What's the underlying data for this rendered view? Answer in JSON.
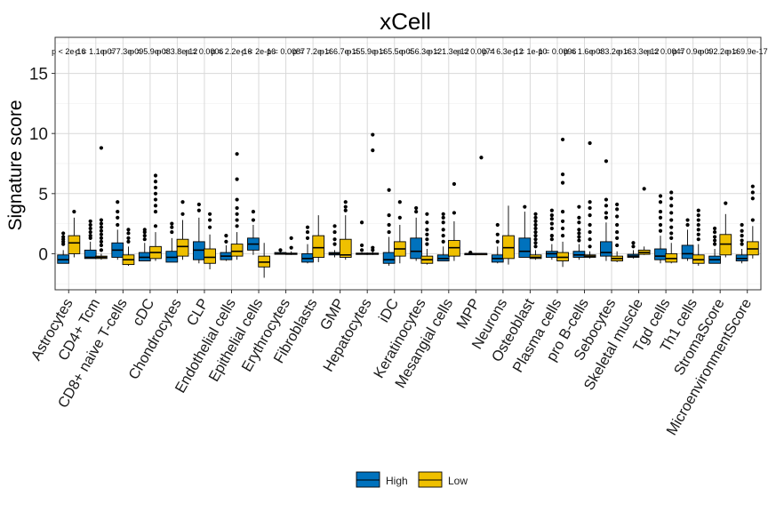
{
  "chart_data": {
    "type": "box",
    "title": "xCell",
    "ylabel": "Signature score",
    "xlabel": "",
    "ylim": [
      -3,
      18
    ],
    "yticks": [
      0,
      5,
      10,
      15
    ],
    "grid": true,
    "legend_position": "bottom",
    "categories": [
      "Astrocytes",
      "CD4+ Tcm",
      "CD8+ naive T-cells",
      "cDC",
      "Chondrocytes",
      "CLP",
      "Endothelial cells",
      "Epithelial cells",
      "Erythrocytes",
      "Fibroblasts",
      "GMP",
      "Hepatocytes",
      "iDC",
      "Keratinocytes",
      "Mesangial cells",
      "MPP",
      "Neurons",
      "Osteoblast",
      "Plasma cells",
      "pro B-cells",
      "Sebocytes",
      "Skeletal muscle",
      "Tgd cells",
      "Th1 cells",
      "StromaScore",
      "MicroenvironmentScore"
    ],
    "pvalues": [
      "p < 2e-16",
      "p = 1.1e-07",
      "p = 7.3e-09",
      "p = 5.9e-08",
      "p = 3.8e-12",
      "p = 0.0006",
      "p = 2.2e-16",
      "p < 2e-16",
      "p = 0.0087",
      "p = 7.2e-16",
      "p = 6.7e-15",
      "p = 5.9e-16",
      "p = 5.5e-05",
      "p = 6.3e-12",
      "p = 1.3e-12",
      "p = 0.0074",
      "p = 6.3e-12",
      "p = 1e-10",
      "p = 0.0096",
      "p = 1.6e-08",
      "p = 3.2e-16",
      "p = 3.3e-12",
      "p = 0.0047",
      "p = 0.9e-09",
      "p = 2.2e-16",
      "p = 9.9e-17"
    ],
    "series": [
      {
        "name": "High",
        "color": "#0072BD",
        "boxes": [
          {
            "min": -0.8,
            "q1": -0.8,
            "median": -0.5,
            "q3": -0.1,
            "max": 0.3,
            "outliers": [
              0.8,
              1.0,
              1.2,
              1.4,
              1.7
            ]
          },
          {
            "min": -0.4,
            "q1": -0.4,
            "median": -0.3,
            "q3": 0.3,
            "max": 1.0,
            "outliers": [
              1.3,
              1.5,
              1.8,
              2.1,
              2.4,
              2.7
            ]
          },
          {
            "min": -0.5,
            "q1": -0.3,
            "median": 0.3,
            "q3": 0.9,
            "max": 2.0,
            "outliers": [
              2.4,
              3.0,
              3.5,
              4.3
            ]
          },
          {
            "min": -0.6,
            "q1": -0.6,
            "median": -0.3,
            "q3": 0.1,
            "max": 0.9,
            "outliers": [
              1.2,
              1.5,
              1.8,
              2.0
            ]
          },
          {
            "min": -0.7,
            "q1": -0.7,
            "median": -0.3,
            "q3": 0.2,
            "max": 1.3,
            "outliers": [
              1.8,
              2.2,
              2.5
            ]
          },
          {
            "min": -0.8,
            "q1": -0.5,
            "median": 0.3,
            "q3": 1.0,
            "max": 3.0,
            "outliers": [
              3.6,
              4.1
            ]
          },
          {
            "min": -0.6,
            "q1": -0.5,
            "median": -0.2,
            "q3": 0.1,
            "max": 0.7,
            "outliers": [
              1.0,
              1.5
            ]
          },
          {
            "min": -0.1,
            "q1": 0.3,
            "median": 0.8,
            "q3": 1.3,
            "max": 2.4,
            "outliers": [
              2.8,
              3.5
            ]
          },
          {
            "min": -0.05,
            "q1": -0.05,
            "median": 0.0,
            "q3": 0.1,
            "max": 0.2,
            "outliers": [
              0.3
            ]
          },
          {
            "min": -0.8,
            "q1": -0.7,
            "median": -0.4,
            "q3": 0.0,
            "max": 0.8,
            "outliers": [
              1.3,
              1.8,
              2.2
            ]
          },
          {
            "min": -0.3,
            "q1": -0.1,
            "median": 0.0,
            "q3": 0.1,
            "max": 0.3,
            "outliers": [
              0.8,
              1.2,
              1.8,
              2.3
            ]
          },
          {
            "min": -0.05,
            "q1": -0.05,
            "median": 0.0,
            "q3": 0.05,
            "max": 0.1,
            "outliers": [
              0.3,
              0.7,
              2.6
            ]
          },
          {
            "min": -1.0,
            "q1": -0.8,
            "median": -0.5,
            "q3": 0.1,
            "max": 1.4,
            "outliers": [
              1.8,
              2.4,
              3.2,
              5.3
            ]
          },
          {
            "min": -0.6,
            "q1": -0.4,
            "median": 0.2,
            "q3": 1.3,
            "max": 3.0,
            "outliers": [
              3.5,
              3.8
            ]
          },
          {
            "min": -0.6,
            "q1": -0.6,
            "median": -0.4,
            "q3": -0.1,
            "max": 0.6,
            "outliers": [
              1.0,
              1.5,
              2.0,
              2.6,
              3.0,
              3.3
            ]
          },
          {
            "min": -0.02,
            "q1": -0.02,
            "median": 0.0,
            "q3": 0.02,
            "max": 0.05,
            "outliers": [
              0.1
            ]
          },
          {
            "min": -0.8,
            "q1": -0.7,
            "median": -0.4,
            "q3": -0.1,
            "max": 0.6,
            "outliers": [
              1.0,
              1.6,
              2.4
            ]
          },
          {
            "min": -0.3,
            "q1": -0.3,
            "median": 0.2,
            "q3": 1.3,
            "max": 3.5,
            "outliers": [
              3.9
            ]
          },
          {
            "min": -0.5,
            "q1": -0.3,
            "median": 0.0,
            "q3": 0.2,
            "max": 0.8,
            "outliers": [
              1.2,
              1.5,
              2.1,
              2.5,
              2.9,
              3.2,
              3.6
            ]
          },
          {
            "min": -0.5,
            "q1": -0.3,
            "median": -0.1,
            "q3": 0.2,
            "max": 0.8,
            "outliers": [
              1.1,
              1.4,
              1.7,
              2.0,
              2.6,
              3.0,
              3.9
            ]
          },
          {
            "min": -0.6,
            "q1": -0.2,
            "median": 0.1,
            "q3": 1.0,
            "max": 2.6,
            "outliers": [
              3.0,
              3.4,
              4.0,
              4.5,
              7.7
            ]
          },
          {
            "min": -0.4,
            "q1": -0.3,
            "median": -0.2,
            "q3": -0.05,
            "max": 0.3,
            "outliers": [
              0.6,
              0.9
            ]
          },
          {
            "min": -0.8,
            "q1": -0.5,
            "median": -0.2,
            "q3": 0.4,
            "max": 1.5,
            "outliers": [
              1.9,
              2.4,
              3.0,
              3.5,
              4.3,
              4.8
            ]
          },
          {
            "min": -0.6,
            "q1": -0.4,
            "median": 0.0,
            "q3": 0.7,
            "max": 2.0,
            "outliers": [
              2.4,
              2.8
            ]
          },
          {
            "min": -0.8,
            "q1": -0.8,
            "median": -0.5,
            "q3": -0.2,
            "max": 0.4,
            "outliers": [
              0.8,
              1.1,
              1.4,
              1.8,
              2.1
            ]
          },
          {
            "min": -0.8,
            "q1": -0.6,
            "median": -0.4,
            "q3": -0.1,
            "max": 0.4,
            "outliers": [
              0.8,
              1.1,
              1.5,
              1.9,
              2.4
            ]
          }
        ]
      },
      {
        "name": "Low",
        "color": "#EFC000",
        "boxes": [
          {
            "min": -0.3,
            "q1": 0.0,
            "median": 0.9,
            "q3": 1.5,
            "max": 3.0,
            "outliers": [
              3.5
            ]
          },
          {
            "min": -0.5,
            "q1": -0.4,
            "median": -0.3,
            "q3": -0.2,
            "max": 0.0,
            "outliers": [
              0.3,
              0.7,
              1.0,
              1.3,
              1.6,
              1.9,
              2.2,
              2.5,
              2.8,
              8.8
            ]
          },
          {
            "min": -1.0,
            "q1": -0.9,
            "median": -0.5,
            "q3": -0.1,
            "max": 0.6,
            "outliers": [
              1.0,
              1.3,
              1.7,
              2.0
            ]
          },
          {
            "min": -0.6,
            "q1": -0.4,
            "median": 0.1,
            "q3": 0.6,
            "max": 1.8,
            "outliers": [
              2.3,
              3.5,
              4.0,
              4.5,
              5.0,
              5.5,
              6.0,
              6.5
            ]
          },
          {
            "min": -0.5,
            "q1": -0.2,
            "median": 0.6,
            "q3": 1.2,
            "max": 2.8,
            "outliers": [
              3.3,
              4.3
            ]
          },
          {
            "min": -1.3,
            "q1": -0.8,
            "median": -0.3,
            "q3": 0.4,
            "max": 1.6,
            "outliers": [
              2.2,
              2.8,
              3.3
            ]
          },
          {
            "min": -0.5,
            "q1": -0.2,
            "median": 0.2,
            "q3": 0.8,
            "max": 1.8,
            "outliers": [
              2.3,
              2.8,
              3.3,
              3.8,
              4.5,
              6.2,
              8.3
            ]
          },
          {
            "min": -2.0,
            "q1": -1.1,
            "median": -0.7,
            "q3": -0.2,
            "max": 0.9,
            "outliers": []
          },
          {
            "min": -0.1,
            "q1": -0.05,
            "median": 0.0,
            "q3": 0.05,
            "max": 0.2,
            "outliers": [
              0.5,
              1.3
            ]
          },
          {
            "min": -0.7,
            "q1": -0.3,
            "median": 0.5,
            "q3": 1.5,
            "max": 3.2,
            "outliers": []
          },
          {
            "min": -0.5,
            "q1": -0.3,
            "median": -0.1,
            "q3": 1.2,
            "max": 3.2,
            "outliers": [
              3.6,
              3.9,
              4.3
            ]
          },
          {
            "min": -0.1,
            "q1": -0.05,
            "median": 0.0,
            "q3": 0.05,
            "max": 0.15,
            "outliers": [
              0.3,
              0.5,
              8.6,
              9.9
            ]
          },
          {
            "min": -0.8,
            "q1": -0.2,
            "median": 0.4,
            "q3": 1.0,
            "max": 2.4,
            "outliers": [
              3.0,
              4.3
            ]
          },
          {
            "min": -0.9,
            "q1": -0.8,
            "median": -0.5,
            "q3": -0.2,
            "max": 0.4,
            "outliers": [
              0.8,
              1.2,
              1.6,
              2.0,
              2.6,
              3.3
            ]
          },
          {
            "min": -0.6,
            "q1": -0.2,
            "median": 0.5,
            "q3": 1.1,
            "max": 2.7,
            "outliers": [
              3.4,
              5.8
            ]
          },
          {
            "min": -0.02,
            "q1": -0.02,
            "median": 0.0,
            "q3": 0.02,
            "max": 0.05,
            "outliers": [
              8.0
            ]
          },
          {
            "min": -0.9,
            "q1": -0.4,
            "median": 0.5,
            "q3": 1.5,
            "max": 4.0,
            "outliers": []
          },
          {
            "min": -0.5,
            "q1": -0.4,
            "median": -0.3,
            "q3": -0.1,
            "max": 0.3,
            "outliers": [
              0.6,
              0.9,
              1.2,
              1.5,
              1.8,
              2.1,
              2.4,
              2.7,
              3.0,
              3.3
            ]
          },
          {
            "min": -1.1,
            "q1": -0.6,
            "median": -0.3,
            "q3": 0.1,
            "max": 1.0,
            "outliers": [
              1.5,
              2.1,
              2.7,
              3.5,
              5.9,
              6.6,
              9.5
            ]
          },
          {
            "min": -0.4,
            "q1": -0.3,
            "median": -0.2,
            "q3": -0.1,
            "max": 0.2,
            "outliers": [
              0.6,
              1.2,
              1.8,
              2.4,
              3.2,
              3.8,
              4.3,
              9.2
            ]
          },
          {
            "min": -0.7,
            "q1": -0.6,
            "median": -0.4,
            "q3": -0.2,
            "max": 0.2,
            "outliers": [
              0.7,
              1.3,
              1.8,
              2.4,
              3.1,
              3.7,
              4.1
            ]
          },
          {
            "min": -0.1,
            "q1": -0.05,
            "median": 0.1,
            "q3": 0.3,
            "max": 0.6,
            "outliers": [
              5.4
            ]
          },
          {
            "min": -0.8,
            "q1": -0.7,
            "median": -0.4,
            "q3": 0.0,
            "max": 0.9,
            "outliers": [
              1.3,
              1.7,
              2.2,
              2.8,
              3.4,
              4.0,
              4.6,
              5.1
            ]
          },
          {
            "min": -1.0,
            "q1": -0.8,
            "median": -0.5,
            "q3": -0.1,
            "max": 0.8,
            "outliers": [
              1.2,
              1.6,
              2.0,
              2.4,
              2.8,
              3.2,
              3.6
            ]
          },
          {
            "min": -0.3,
            "q1": -0.1,
            "median": 0.8,
            "q3": 1.6,
            "max": 3.3,
            "outliers": [
              4.2
            ]
          },
          {
            "min": -0.4,
            "q1": -0.1,
            "median": 0.4,
            "q3": 1.0,
            "max": 2.3,
            "outliers": [
              2.8,
              4.6,
              5.1,
              5.6
            ]
          }
        ]
      }
    ],
    "legend": [
      {
        "label": "High",
        "color": "#0072BD"
      },
      {
        "label": "Low",
        "color": "#EFC000"
      }
    ]
  }
}
